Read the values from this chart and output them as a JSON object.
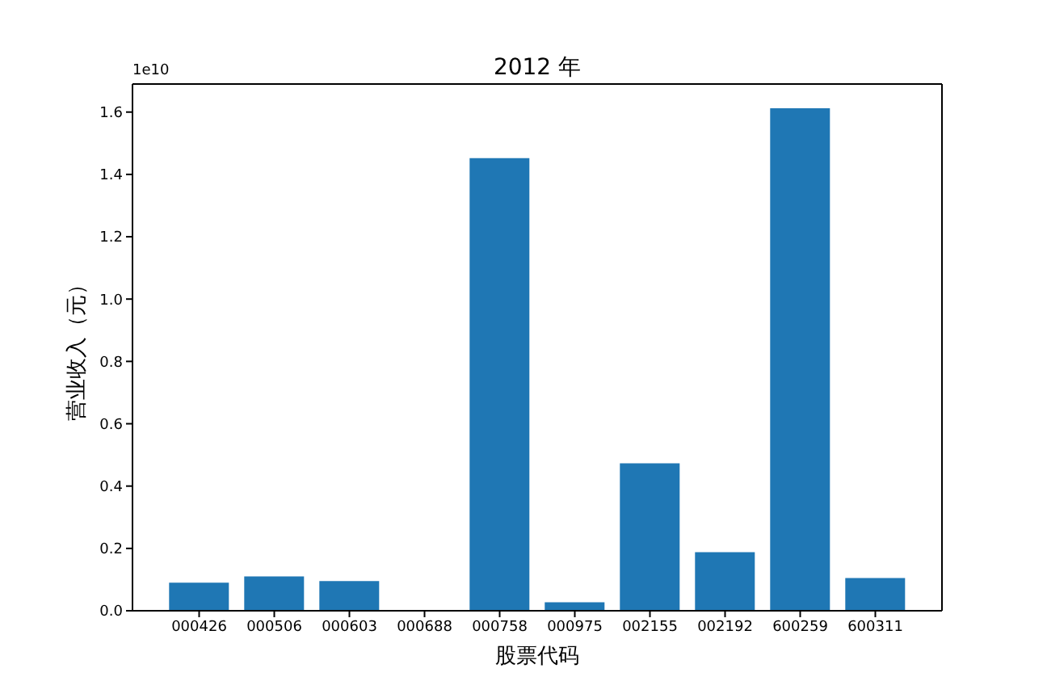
{
  "chart_data": {
    "type": "bar",
    "title": "2012 年",
    "xlabel": "股票代码",
    "ylabel": "营业收入（元）",
    "annotations": [
      "1e10"
    ],
    "categories": [
      "000426",
      "000506",
      "000603",
      "000688",
      "000758",
      "000975",
      "002155",
      "002192",
      "600259",
      "600311"
    ],
    "values": [
      0.09,
      0.11,
      0.095,
      null,
      1.452,
      0.027,
      0.473,
      0.188,
      1.612,
      0.105
    ],
    "color": "#1f77b4",
    "ylim": [
      0,
      1.69
    ],
    "yticks": [
      {
        "value": 0,
        "label": "0.0"
      },
      {
        "value": 0.2,
        "label": "0.2"
      },
      {
        "value": 0.4,
        "label": "0.4"
      },
      {
        "value": 0.6,
        "label": "0.6"
      },
      {
        "value": 0.8,
        "label": "0.8"
      },
      {
        "value": 1,
        "label": "1.0"
      },
      {
        "value": 1.2,
        "label": "1.2"
      },
      {
        "value": 1.4,
        "label": "1.4"
      },
      {
        "value": 1.6,
        "label": "1.6"
      }
    ]
  }
}
